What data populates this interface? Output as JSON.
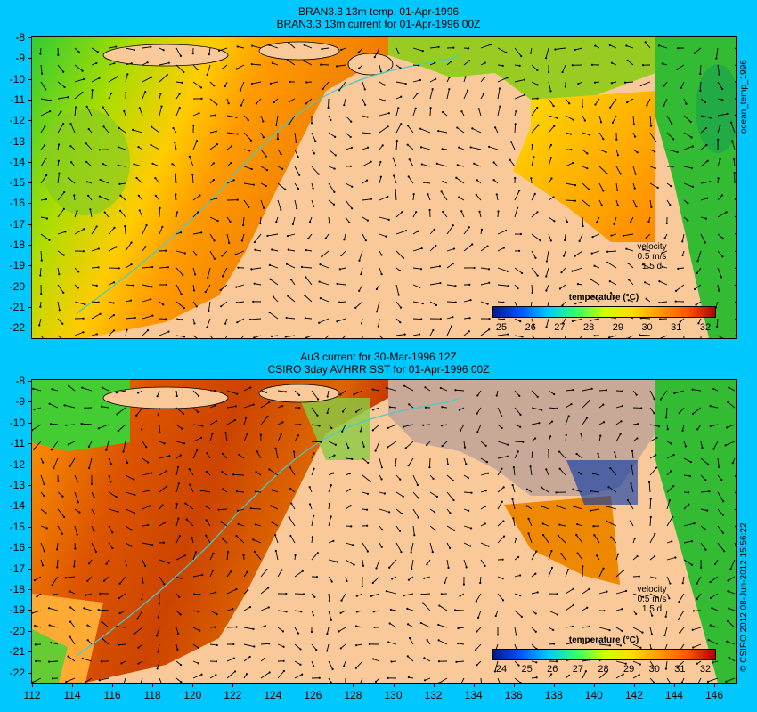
{
  "panel1": {
    "title_line1": "BRAN3.3 13m temp. 01-Apr-1996",
    "title_line2": "BRAN3.3 13m current for 01-Apr-1996 00Z",
    "legend": {
      "label": "velocity",
      "speed": "0.5 m/s",
      "duration": "1.5 d"
    },
    "colorbar": {
      "title": "temperature (°C)",
      "ticks": [
        "25",
        "26",
        "27",
        "28",
        "29",
        "30",
        "31",
        "32"
      ]
    },
    "side_label": "ocean_temp_1996"
  },
  "panel2": {
    "title_line1": "Au3 current for 30-Mar-1996 12Z",
    "title_line2": "CSIRO 3day AVHRR SST for 01-Apr-1996 00Z",
    "legend": {
      "label": "velocity",
      "speed": "0.5 m/s",
      "duration": "1.5 d"
    },
    "colorbar": {
      "title": "temperature (°C)",
      "ticks": [
        "24",
        "25",
        "26",
        "27",
        "28",
        "29",
        "30",
        "31",
        "32"
      ]
    },
    "side_label": "© CSIRO 2012   08-Jun-2012 15:56:22"
  },
  "y_axis": [
    "-8",
    "-9",
    "-10",
    "-11",
    "-12",
    "-13",
    "-14",
    "-15",
    "-16",
    "-17",
    "-18",
    "-19",
    "-20",
    "-21",
    "-22"
  ],
  "x_axis": [
    "112",
    "114",
    "116",
    "118",
    "120",
    "122",
    "124",
    "126",
    "128",
    "130",
    "132",
    "134",
    "136",
    "138",
    "140",
    "142",
    "144",
    "146"
  ],
  "colors": {
    "background": "#00c8ff",
    "land": "#f9c99a",
    "cloud": "#c8a896"
  }
}
